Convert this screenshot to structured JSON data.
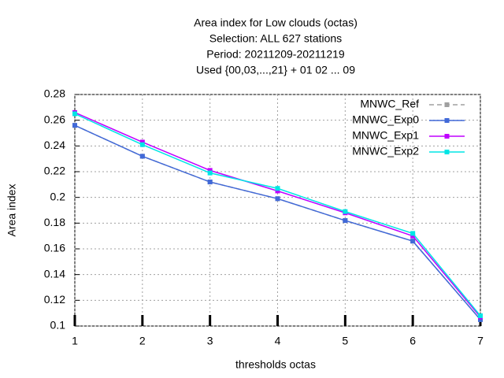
{
  "chart_data": {
    "type": "line",
    "title": [
      "Area index  for Low clouds (octas)",
      "Selection: ALL    627 stations",
      "Period: 20211209-20211219",
      "Used {00,03,...,21} + 01 02 ... 09"
    ],
    "x_label": "thresholds octas",
    "y_label": "Area index",
    "x": [
      1,
      2,
      3,
      4,
      5,
      6,
      7
    ],
    "xlim": [
      1,
      7
    ],
    "xticks": [
      1,
      2,
      3,
      4,
      5,
      6,
      7
    ],
    "ylim": [
      0.1,
      0.28
    ],
    "yticks": [
      0.1,
      0.12,
      0.14,
      0.16,
      0.18,
      0.2,
      0.22,
      0.24,
      0.26,
      0.28
    ],
    "grid": true,
    "legend": "top-right",
    "series": [
      {
        "name": "MNWC_Ref",
        "color": "#a0a0a0",
        "dashed": true,
        "values": [
          0.256,
          0.232,
          0.212,
          0.199,
          0.182,
          0.166,
          0.105
        ]
      },
      {
        "name": "MNWC_Exp0",
        "color": "#4169d8",
        "values": [
          0.256,
          0.232,
          0.212,
          0.199,
          0.182,
          0.166,
          0.105
        ]
      },
      {
        "name": "MNWC_Exp1",
        "color": "#c000ff",
        "values": [
          0.266,
          0.243,
          0.221,
          0.205,
          0.188,
          0.17,
          0.107
        ]
      },
      {
        "name": "MNWC_Exp2",
        "color": "#00e5e5",
        "values": [
          0.265,
          0.241,
          0.219,
          0.207,
          0.189,
          0.172,
          0.108
        ]
      }
    ]
  }
}
